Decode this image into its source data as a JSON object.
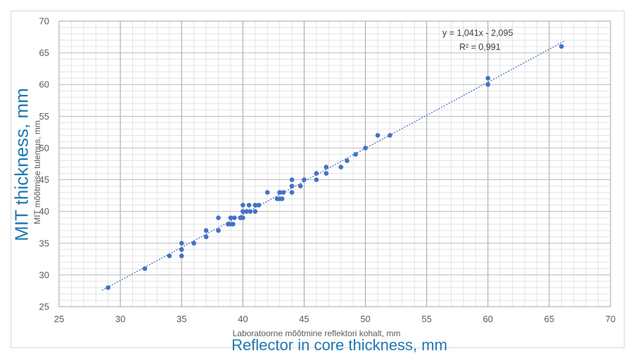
{
  "chart_data": {
    "type": "scatter",
    "title": "",
    "xlabel": "Laboratoorne mõõtmine reflektori kohalt, mm",
    "ylabel": "MIT mõõtmise tulemus, mm",
    "xlabel_overlay": "Reflector in core thickness, mm",
    "ylabel_overlay": "MIT thickness, mm",
    "xlim": [
      25,
      70
    ],
    "ylim": [
      25,
      70
    ],
    "x_ticks": [
      "25",
      "30",
      "35",
      "40",
      "45",
      "50",
      "55",
      "60",
      "65",
      "70"
    ],
    "y_ticks": [
      "25",
      "30",
      "35",
      "40",
      "45",
      "50",
      "55",
      "60",
      "65",
      "70"
    ],
    "grid": true,
    "trendline": {
      "type": "linear",
      "slope": 1.041,
      "intercept": -2.095,
      "equation": "y = 1,041x - 2,095",
      "r2": "R² = 0,991"
    },
    "colors": {
      "points": "#4472c4",
      "trendline": "#4472c4",
      "overlay_text": "#1f78b4"
    },
    "series": [
      {
        "points": [
          [
            29,
            28
          ],
          [
            32,
            31
          ],
          [
            34,
            33
          ],
          [
            35,
            33
          ],
          [
            35,
            34
          ],
          [
            35,
            35
          ],
          [
            36,
            35
          ],
          [
            37,
            36
          ],
          [
            37,
            37
          ],
          [
            38,
            37
          ],
          [
            38,
            39
          ],
          [
            38.8,
            38
          ],
          [
            39,
            38
          ],
          [
            39.2,
            38
          ],
          [
            39,
            39
          ],
          [
            39.3,
            39
          ],
          [
            39.8,
            39
          ],
          [
            40,
            39
          ],
          [
            40,
            40
          ],
          [
            40,
            41
          ],
          [
            40.3,
            40
          ],
          [
            40.6,
            40
          ],
          [
            40.5,
            41
          ],
          [
            41,
            40
          ],
          [
            41,
            41
          ],
          [
            41.3,
            41
          ],
          [
            42,
            43
          ],
          [
            42.8,
            42
          ],
          [
            43,
            42
          ],
          [
            43.2,
            42
          ],
          [
            43,
            43
          ],
          [
            43.3,
            43
          ],
          [
            44,
            43
          ],
          [
            44,
            44
          ],
          [
            44,
            45
          ],
          [
            44.7,
            44
          ],
          [
            45,
            45
          ],
          [
            46,
            45
          ],
          [
            46,
            46
          ],
          [
            46.8,
            46
          ],
          [
            46.8,
            47
          ],
          [
            48,
            47
          ],
          [
            48.5,
            48
          ],
          [
            49.2,
            49
          ],
          [
            50,
            50
          ],
          [
            51,
            52
          ],
          [
            52,
            52
          ],
          [
            60,
            60
          ],
          [
            60,
            61
          ],
          [
            66,
            66
          ]
        ]
      }
    ]
  }
}
